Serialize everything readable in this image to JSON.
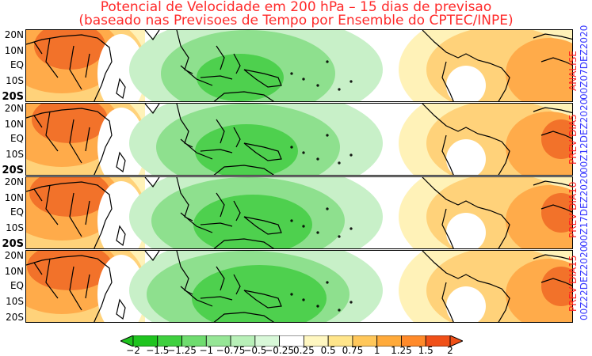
{
  "title_line1": "Potencial de Velocidade em 200 hPa – 15 dias de previsao",
  "title_line2": "(baseado nas Previsoes de Tempo por Ensemble do CPTEC/INPE)",
  "lat_labels": [
    "20N",
    "10N",
    "EQ",
    "10S",
    "20S"
  ],
  "panels": [
    {
      "label": "ANALISE",
      "date": "00Z07DEZ2020"
    },
    {
      "label": "PREV DIA5",
      "date": "00Z12DEZ2020"
    },
    {
      "label": "PREV DIA10",
      "date": "00Z17DEZ2020"
    },
    {
      "label": "PREV DIA15",
      "date": "00Z22DEZ2020"
    }
  ],
  "colorbar": {
    "labels": [
      "−2",
      "−1.5",
      "−1.25",
      "−1",
      "−0.75",
      "−0.5",
      "−0.25",
      "0.25",
      "0.5",
      "0.75",
      "1",
      "1.25",
      "1.5",
      "2"
    ],
    "colors": [
      "#1fc41f",
      "#3fd03f",
      "#6fdc6f",
      "#96e696",
      "#b8f0b8",
      "#d8f8d8",
      "#ffffff",
      "#fff7c0",
      "#ffe58a",
      "#ffc75a",
      "#ffaa3a",
      "#ff8a2a",
      "#f05018"
    ]
  },
  "map_colors": {
    "neg_strong": "#4ed04e",
    "neg_mid": "#8ee08e",
    "neg_light": "#c8f0c8",
    "pos_light": "#fff2b8",
    "pos_mid": "#ffd27a",
    "pos_strong": "#ffab4a",
    "pos_max": "#f2722a"
  }
}
